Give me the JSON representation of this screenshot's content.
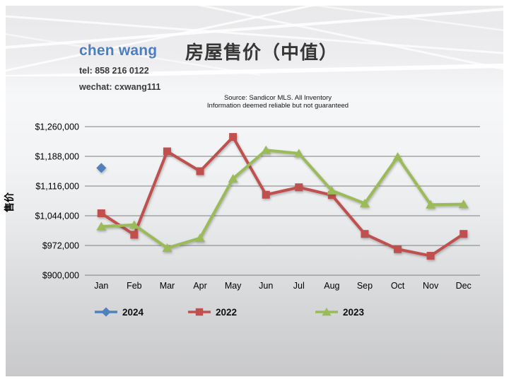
{
  "header": {
    "agent_name": "chen wang",
    "tel": "tel: 858 216 0122",
    "wechat": "wechat: cxwang111"
  },
  "source": {
    "line1": "Source: Sandicor MLS. All Inventory",
    "line2": "Information deemed reliable but not guaranteed"
  },
  "chart_data": {
    "type": "line",
    "title": "房屋售价（中值）",
    "ylabel": "售价",
    "xlabel": "",
    "categories": [
      "Jan",
      "Feb",
      "Mar",
      "Apr",
      "May",
      "Jun",
      "Jul",
      "Aug",
      "Sep",
      "Oct",
      "Nov",
      "Dec"
    ],
    "ylim": [
      900000,
      1260000
    ],
    "y_step": 72000,
    "y_tick_labels": [
      "$900,000",
      "$972,000",
      "$1,044,000",
      "$1,116,000",
      "$1,188,000",
      "$1,260,000"
    ],
    "grid": true,
    "legend_position": "bottom",
    "legend_order": [
      "2024",
      "2022",
      "2023"
    ],
    "series": [
      {
        "name": "2024",
        "marker": "diamond",
        "color": "#4F81BD",
        "values": [
          1160000,
          null,
          null,
          null,
          null,
          null,
          null,
          null,
          null,
          null,
          null,
          null
        ]
      },
      {
        "name": "2022",
        "marker": "square",
        "color": "#C0504D",
        "values": [
          1050000,
          998000,
          1200000,
          1152000,
          1235000,
          1095000,
          1113000,
          1094000,
          1000000,
          963000,
          947000,
          1000000
        ]
      },
      {
        "name": "2023",
        "marker": "triangle",
        "color": "#9BBB59",
        "values": [
          1018000,
          1022000,
          966000,
          990000,
          1134000,
          1203000,
          1195000,
          1105000,
          1074000,
          1187000,
          1071000,
          1072000
        ]
      }
    ]
  },
  "colors": {
    "accent_blue": "#4F81BD",
    "accent_red": "#C0504D",
    "accent_green": "#9BBB59",
    "gridline": "#7f7f7f",
    "text_dark": "#3b3b3b"
  }
}
